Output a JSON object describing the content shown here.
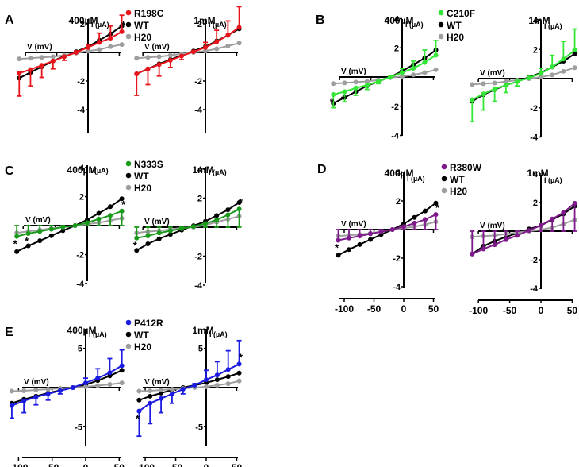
{
  "figure": {
    "xlabel": "V (mV)",
    "ylabel": "I (µA)",
    "wt_label": "WT",
    "h2o_label": "H20",
    "colors": {
      "wt": "#000000",
      "h2o": "#9e9e9e"
    }
  },
  "chart_data": [
    {
      "panel": "A",
      "type": "line",
      "mutant": "R198C",
      "color": "#e8141b",
      "x": [
        -110,
        -90,
        -70,
        -50,
        -30,
        -10,
        10,
        30,
        50,
        70
      ],
      "ylim": [
        -4,
        4
      ],
      "yticks": [
        -4,
        -2,
        2,
        4
      ],
      "subplots": [
        {
          "title": "400µM",
          "series": [
            {
              "name": "WT",
              "values": [
                -1.8,
                -1.4,
                -1.0,
                -0.6,
                -0.25,
                0.05,
                0.4,
                0.85,
                1.3,
                1.85
              ]
            },
            {
              "name": "H20",
              "values": [
                -0.45,
                -0.4,
                -0.35,
                -0.3,
                -0.2,
                -0.05,
                0.1,
                0.2,
                0.4,
                0.55
              ]
            },
            {
              "name": "R198C",
              "values": [
                -1.45,
                -1.2,
                -0.9,
                -0.6,
                -0.3,
                0.0,
                0.35,
                0.7,
                1.0,
                1.45
              ],
              "err": [
                1.6,
                1.15,
                0.85,
                0.55,
                0.25,
                0.1,
                0.15,
                0.65,
                0.85,
                1.15
              ]
            }
          ],
          "stars": [
            9
          ]
        },
        {
          "title": "1mM",
          "series": [
            {
              "name": "WT",
              "values": [
                -1.5,
                -1.15,
                -0.8,
                -0.5,
                -0.2,
                0.1,
                0.4,
                0.8,
                1.2,
                1.65
              ]
            },
            {
              "name": "H20",
              "values": [
                -0.4,
                -0.35,
                -0.3,
                -0.2,
                -0.1,
                0.0,
                0.1,
                0.25,
                0.45,
                0.65
              ]
            },
            {
              "name": "R198C",
              "values": [
                -1.5,
                -1.15,
                -0.85,
                -0.55,
                -0.25,
                0.05,
                0.35,
                0.75,
                1.2,
                1.75
              ],
              "err": [
                1.5,
                1.1,
                0.8,
                0.5,
                0.25,
                0.05,
                0.35,
                0.8,
                1.0,
                1.45
              ]
            }
          ],
          "stars": []
        }
      ]
    },
    {
      "panel": "B",
      "type": "line",
      "mutant": "C210F",
      "color": "#33e636",
      "x": [
        -110,
        -90,
        -70,
        -50,
        -30,
        -10,
        10,
        30,
        50,
        70
      ],
      "ylim": [
        -4,
        4
      ],
      "yticks": [
        -4,
        -2,
        2,
        4
      ],
      "subplots": [
        {
          "title": "400µM",
          "series": [
            {
              "name": "WT",
              "values": [
                -1.8,
                -1.4,
                -1.0,
                -0.6,
                -0.3,
                0.0,
                0.4,
                0.85,
                1.3,
                1.85
              ]
            },
            {
              "name": "H20",
              "values": [
                -0.45,
                -0.4,
                -0.35,
                -0.3,
                -0.2,
                -0.05,
                0.05,
                0.15,
                0.3,
                0.5
              ]
            },
            {
              "name": "C210F",
              "values": [
                -1.2,
                -1.0,
                -0.75,
                -0.55,
                -0.3,
                0.0,
                0.3,
                0.6,
                1.0,
                1.5
              ],
              "err": [
                0.9,
                0.7,
                0.5,
                0.3,
                0.15,
                0.05,
                0.3,
                0.5,
                0.85,
                1.0
              ]
            }
          ],
          "stars": [
            0,
            1
          ]
        },
        {
          "title": "1mM",
          "series": [
            {
              "name": "WT",
              "values": [
                -1.55,
                -1.1,
                -0.75,
                -0.45,
                -0.2,
                0.1,
                0.4,
                0.8,
                1.2,
                1.7
              ]
            },
            {
              "name": "H20",
              "values": [
                -0.4,
                -0.35,
                -0.3,
                -0.2,
                -0.1,
                0.0,
                0.1,
                0.25,
                0.5,
                0.75
              ]
            },
            {
              "name": "C210F",
              "values": [
                -1.45,
                -1.05,
                -0.7,
                -0.45,
                -0.2,
                0.05,
                0.35,
                0.8,
                1.35,
                1.95
              ],
              "err": [
                1.5,
                1.1,
                0.85,
                0.5,
                0.3,
                0.1,
                0.35,
                0.8,
                1.2,
                1.45
              ]
            }
          ],
          "stars": []
        }
      ]
    },
    {
      "panel": "C",
      "type": "line",
      "mutant": "N333S",
      "color": "#1a9a1a",
      "x": [
        -110,
        -90,
        -70,
        -50,
        -30,
        -10,
        10,
        30,
        50,
        70
      ],
      "ylim": [
        -4,
        4
      ],
      "yticks": [
        -4,
        -2,
        2,
        4
      ],
      "subplots": [
        {
          "title": "400µM",
          "series": [
            {
              "name": "WT",
              "values": [
                -1.8,
                -1.4,
                -1.05,
                -0.7,
                -0.35,
                0.0,
                0.4,
                0.85,
                1.3,
                1.85
              ]
            },
            {
              "name": "H20",
              "values": [
                -0.5,
                -0.4,
                -0.3,
                -0.2,
                -0.1,
                0.0,
                0.1,
                0.2,
                0.35,
                0.5
              ]
            },
            {
              "name": "N333S",
              "values": [
                -0.75,
                -0.55,
                -0.4,
                -0.25,
                -0.1,
                0.0,
                0.2,
                0.45,
                0.7,
                1.0
              ],
              "err": [
                0.75,
                0.55,
                0.4,
                0.25,
                0.1,
                0.05,
                0.2,
                0.45,
                0.7,
                1.0
              ]
            }
          ],
          "stars": [
            0,
            1,
            9
          ]
        },
        {
          "title": "1mM",
          "series": [
            {
              "name": "WT",
              "values": [
                -1.6,
                -1.15,
                -0.8,
                -0.5,
                -0.2,
                0.1,
                0.4,
                0.8,
                1.2,
                1.7
              ]
            },
            {
              "name": "H20",
              "values": [
                -0.4,
                -0.3,
                -0.25,
                -0.15,
                -0.05,
                0.0,
                0.15,
                0.35,
                0.55,
                0.75
              ]
            },
            {
              "name": "N333S",
              "values": [
                -0.75,
                -0.6,
                -0.4,
                -0.25,
                -0.1,
                0.05,
                0.25,
                0.5,
                0.85,
                1.25
              ],
              "err": [
                0.75,
                0.6,
                0.4,
                0.25,
                0.1,
                0.05,
                0.25,
                0.5,
                0.85,
                1.25
              ]
            }
          ],
          "stars": [
            0,
            9
          ]
        }
      ]
    },
    {
      "panel": "D",
      "type": "line",
      "mutant": "R380W",
      "color": "#7f1a8c",
      "x": [
        -110,
        -90,
        -70,
        -50,
        -30,
        -10,
        10,
        30,
        50,
        70
      ],
      "xticks": [
        -100,
        -50,
        0,
        50
      ],
      "ylim": [
        -4,
        4
      ],
      "yticks": [
        -4,
        -2,
        2,
        4
      ],
      "subplots": [
        {
          "title": "400µM",
          "series": [
            {
              "name": "WT",
              "values": [
                -1.8,
                -1.4,
                -1.05,
                -0.7,
                -0.35,
                0.0,
                0.4,
                0.85,
                1.3,
                1.85
              ]
            },
            {
              "name": "H20",
              "values": [
                -0.45,
                -0.4,
                -0.35,
                -0.25,
                -0.15,
                0.0,
                0.1,
                0.2,
                0.35,
                0.55
              ]
            },
            {
              "name": "R380W",
              "values": [
                -0.75,
                -0.6,
                -0.45,
                -0.3,
                -0.15,
                0.0,
                0.2,
                0.45,
                0.7,
                1.05
              ],
              "err": [
                0.75,
                0.6,
                0.45,
                0.3,
                0.15,
                0.05,
                0.2,
                0.45,
                0.7,
                1.05
              ]
            }
          ],
          "stars": [
            0,
            9
          ]
        },
        {
          "title": "1mM",
          "series": [
            {
              "name": "WT",
              "values": [
                -1.6,
                -1.05,
                -0.7,
                -0.4,
                -0.15,
                0.15,
                0.4,
                0.8,
                1.2,
                1.75
              ]
            },
            {
              "name": "H20",
              "values": [
                -0.4,
                -0.35,
                -0.3,
                -0.2,
                -0.1,
                0.0,
                0.1,
                0.25,
                0.5,
                0.8
              ]
            },
            {
              "name": "R380W",
              "values": [
                -1.6,
                -1.25,
                -0.95,
                -0.6,
                -0.3,
                0.05,
                0.4,
                0.85,
                1.3,
                1.95
              ],
              "err": [
                1.6,
                1.25,
                0.95,
                0.6,
                0.3,
                0.05,
                0.4,
                0.85,
                1.3,
                1.95
              ]
            }
          ],
          "stars": []
        }
      ]
    },
    {
      "panel": "E",
      "type": "line",
      "mutant": "P412R",
      "color": "#1a1ae0",
      "x": [
        -110,
        -90,
        -70,
        -50,
        -30,
        -10,
        10,
        30,
        50,
        70
      ],
      "xticks": [
        -100,
        -50,
        0,
        50
      ],
      "ylim": [
        -7.5,
        7.5
      ],
      "yticks": [
        -5,
        5
      ],
      "subplots": [
        {
          "title": "400µM",
          "series": [
            {
              "name": "WT",
              "values": [
                -2.0,
                -1.5,
                -1.1,
                -0.7,
                -0.35,
                0.0,
                0.35,
                0.9,
                1.5,
                2.2
              ]
            },
            {
              "name": "H20",
              "values": [
                -0.45,
                -0.4,
                -0.3,
                -0.2,
                -0.1,
                0.0,
                0.1,
                0.25,
                0.4,
                0.6
              ]
            },
            {
              "name": "P412R",
              "values": [
                -2.3,
                -1.7,
                -1.2,
                -0.8,
                -0.4,
                0.0,
                0.6,
                1.2,
                1.9,
                2.8
              ],
              "err": [
                1.6,
                1.5,
                1.0,
                0.8,
                0.4,
                0.1,
                0.6,
                1.2,
                1.8,
                2.0
              ]
            }
          ],
          "stars": []
        },
        {
          "title": "1mM",
          "series": [
            {
              "name": "WT",
              "values": [
                -1.6,
                -1.1,
                -0.7,
                -0.3,
                0.0,
                0.3,
                0.6,
                1.0,
                1.4,
                1.85
              ]
            },
            {
              "name": "H20",
              "values": [
                -0.45,
                -0.4,
                -0.3,
                -0.2,
                -0.1,
                0.0,
                0.1,
                0.3,
                0.5,
                0.85
              ]
            },
            {
              "name": "P412R",
              "values": [
                -3.0,
                -2.0,
                -1.4,
                -0.8,
                -0.2,
                0.3,
                1.0,
                1.6,
                2.3,
                3.0
              ],
              "err": [
                3.2,
                2.6,
                1.8,
                1.2,
                0.6,
                0.2,
                1.2,
                1.7,
                2.4,
                3.0
              ]
            }
          ],
          "stars": [
            0,
            9
          ]
        }
      ]
    }
  ]
}
